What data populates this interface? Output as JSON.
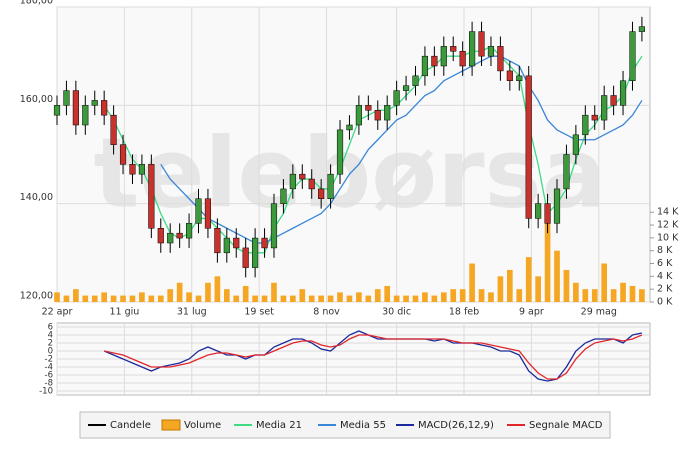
{
  "chart_data": [
    {
      "type": "candlestick",
      "name": "Candele",
      "color": "#000000",
      "up_color": "#3c9a3c",
      "down_color": "#c8322d",
      "watermark": "telebørsa",
      "x": [
        0,
        7,
        14,
        21,
        28,
        35,
        42,
        49,
        56,
        63,
        70,
        77,
        84,
        91,
        98,
        105,
        112,
        119,
        126,
        133,
        140,
        147,
        154,
        161,
        168,
        175,
        182,
        189,
        196,
        203,
        210,
        217,
        224,
        231,
        238,
        245,
        252,
        259,
        266,
        273,
        280,
        287,
        294,
        301,
        308,
        315,
        322,
        329,
        336,
        343,
        350,
        357,
        364,
        371,
        378,
        385,
        392,
        399,
        406,
        413,
        420,
        427,
        434
      ],
      "open": [
        158,
        160,
        163,
        156,
        160,
        161,
        158,
        152,
        148,
        146,
        148,
        135,
        132,
        134,
        133,
        136,
        141,
        135,
        130,
        133,
        131,
        127,
        133,
        131,
        140,
        143,
        146,
        145,
        143,
        141,
        146,
        155,
        156,
        160,
        159,
        157,
        160,
        163,
        164,
        166,
        170,
        168,
        172,
        171,
        168,
        175,
        170,
        172,
        167,
        165,
        166,
        137,
        140,
        136,
        143,
        150,
        154,
        158,
        157,
        162,
        160,
        165,
        175
      ],
      "high": [
        162,
        165,
        165,
        162,
        163,
        163,
        160,
        154,
        150,
        150,
        150,
        137,
        136,
        136,
        138,
        143,
        143,
        137,
        135,
        135,
        133,
        135,
        135,
        142,
        145,
        148,
        148,
        147,
        145,
        148,
        157,
        158,
        162,
        162,
        161,
        162,
        165,
        166,
        168,
        172,
        172,
        174,
        174,
        173,
        177,
        177,
        174,
        174,
        169,
        168,
        168,
        142,
        142,
        145,
        152,
        156,
        160,
        160,
        164,
        164,
        167,
        177,
        178
      ],
      "low": [
        156,
        158,
        154,
        154,
        158,
        156,
        150,
        146,
        144,
        144,
        133,
        130,
        130,
        131,
        131,
        134,
        133,
        128,
        128,
        129,
        125,
        125,
        129,
        129,
        138,
        141,
        143,
        141,
        139,
        139,
        144,
        153,
        154,
        157,
        155,
        155,
        158,
        161,
        162,
        164,
        166,
        166,
        169,
        166,
        166,
        168,
        168,
        165,
        163,
        163,
        135,
        135,
        134,
        134,
        141,
        148,
        152,
        155,
        155,
        158,
        158,
        163,
        173
      ],
      "close": [
        160,
        163,
        156,
        160,
        161,
        158,
        152,
        148,
        146,
        148,
        135,
        132,
        134,
        133,
        136,
        141,
        135,
        130,
        133,
        131,
        127,
        133,
        131,
        140,
        143,
        146,
        145,
        143,
        141,
        146,
        155,
        156,
        160,
        159,
        157,
        160,
        163,
        164,
        166,
        170,
        168,
        172,
        171,
        168,
        175,
        170,
        172,
        167,
        165,
        166,
        137,
        140,
        136,
        143,
        150,
        154,
        158,
        157,
        162,
        160,
        165,
        175,
        176
      ],
      "series": [
        {
          "name": "Media 21",
          "color": "#3ddc84",
          "values": [
            null,
            null,
            null,
            null,
            null,
            160,
            157,
            153,
            149,
            147,
            143,
            138,
            134,
            133,
            134,
            137,
            137,
            135,
            133,
            131,
            130,
            130,
            130,
            135,
            138,
            143,
            145,
            145,
            143,
            143,
            147,
            152,
            157,
            158,
            159,
            159,
            160,
            162,
            164,
            167,
            168,
            170,
            170,
            170,
            171,
            171,
            172,
            170,
            168,
            166,
            156,
            148,
            138,
            140,
            143,
            149,
            154,
            156,
            159,
            160,
            162,
            167,
            170
          ]
        },
        {
          "name": "Media 55",
          "color": "#3a86d8",
          "values": [
            null,
            null,
            null,
            null,
            null,
            null,
            null,
            null,
            null,
            null,
            null,
            148,
            145,
            143,
            141,
            139,
            137,
            136,
            135,
            134,
            133,
            132,
            132,
            133,
            134,
            135,
            136,
            137,
            138,
            140,
            143,
            146,
            148,
            151,
            153,
            155,
            157,
            158,
            160,
            162,
            163,
            165,
            166,
            167,
            168,
            169,
            170,
            170,
            169,
            168,
            164,
            161,
            157,
            155,
            154,
            153,
            153,
            153,
            154,
            155,
            156,
            158,
            161
          ]
        }
      ],
      "volume": {
        "name": "Volume",
        "color": "#f5a623",
        "axis": "y2",
        "values": [
          1.5,
          1,
          2,
          1,
          1,
          1.5,
          1,
          1,
          1,
          1.5,
          1,
          1,
          2,
          3,
          1.5,
          1,
          3,
          4,
          2,
          1,
          2.5,
          1,
          1,
          3,
          1,
          1,
          2,
          1,
          1,
          1,
          1.5,
          1,
          1.5,
          1,
          2,
          2.5,
          1,
          1,
          1,
          1.5,
          1,
          1.5,
          2,
          2,
          6,
          2,
          1.5,
          4,
          5,
          2,
          7,
          4,
          13,
          8,
          5,
          3,
          2,
          2,
          6,
          2,
          3,
          2.5,
          2
        ]
      },
      "xlim": [
        0,
        440
      ],
      "xticks": [
        {
          "value": 0,
          "label": "22 apr"
        },
        {
          "value": 50,
          "label": "11 giu"
        },
        {
          "value": 100,
          "label": "31 lug"
        },
        {
          "value": 150,
          "label": "19 set"
        },
        {
          "value": 200,
          "label": "8 nov"
        },
        {
          "value": 252,
          "label": "30 dic"
        },
        {
          "value": 302,
          "label": "18 feb"
        },
        {
          "value": 352,
          "label": "9 apr"
        },
        {
          "value": 402,
          "label": "29 mag"
        }
      ],
      "ylim": [
        120,
        180
      ],
      "yticks": [
        {
          "value": 120,
          "label": "120,00"
        },
        {
          "value": 140,
          "label": "140,00"
        },
        {
          "value": 160,
          "label": "160,00"
        },
        {
          "value": 180,
          "label": "180,00"
        }
      ],
      "y2lim": [
        0,
        46
      ],
      "y2ticks": [
        {
          "value": 0,
          "label": "0 K"
        },
        {
          "value": 2,
          "label": "2 K"
        },
        {
          "value": 4,
          "label": "4 K"
        },
        {
          "value": 6,
          "label": "6 K"
        },
        {
          "value": 8,
          "label": "8 K"
        },
        {
          "value": 10,
          "label": "10 K"
        },
        {
          "value": 12,
          "label": "12 K"
        },
        {
          "value": 14,
          "label": "14 K"
        }
      ],
      "grid": true
    },
    {
      "type": "line",
      "x": [
        0,
        7,
        14,
        21,
        28,
        35,
        42,
        49,
        56,
        63,
        70,
        77,
        84,
        91,
        98,
        105,
        112,
        119,
        126,
        133,
        140,
        147,
        154,
        161,
        168,
        175,
        182,
        189,
        196,
        203,
        210,
        217,
        224,
        231,
        238,
        245,
        252,
        259,
        266,
        273,
        280,
        287,
        294,
        301,
        308,
        315,
        322,
        329,
        336,
        343,
        350,
        357,
        364,
        371,
        378,
        385,
        392,
        399,
        406,
        413,
        420,
        427,
        434
      ],
      "series": [
        {
          "name": "MACD(26,12,9)",
          "color": "#1a2a9c",
          "values": [
            null,
            null,
            null,
            null,
            null,
            0,
            -1,
            -2,
            -3,
            -4,
            -5,
            -4,
            -3.5,
            -3,
            -2,
            0,
            1,
            0,
            -1,
            -1,
            -2,
            -1,
            -1,
            1,
            2,
            3,
            3,
            2,
            0.5,
            0,
            2,
            4,
            5,
            4,
            3,
            3,
            3,
            3,
            3,
            3,
            2.5,
            3,
            2,
            2,
            2,
            1.5,
            1,
            0,
            0,
            -1,
            -5,
            -7,
            -7.5,
            -7,
            -4,
            0,
            2,
            3,
            3,
            3,
            2,
            4,
            4.5
          ]
        },
        {
          "name": "Segnale MACD",
          "color": "#e0262b",
          "values": [
            null,
            null,
            null,
            null,
            null,
            0,
            -0.5,
            -1,
            -2,
            -3,
            -4,
            -4,
            -4,
            -3.5,
            -3,
            -2,
            -1,
            -0.5,
            -0.5,
            -1,
            -1.5,
            -1,
            -1,
            0,
            1,
            2,
            2.5,
            2.5,
            1.5,
            1,
            1.5,
            3,
            4,
            4,
            3.5,
            3,
            3,
            3,
            3,
            3,
            3,
            3,
            2.5,
            2,
            2,
            2,
            1.5,
            1,
            0.5,
            0,
            -3,
            -5.5,
            -7,
            -7,
            -5.5,
            -2,
            0.5,
            2,
            2.5,
            3,
            2.5,
            3,
            4
          ]
        }
      ],
      "xlim": [
        0,
        440
      ],
      "ylim": [
        -11,
        7
      ],
      "yticks": [
        6,
        4,
        2,
        0,
        -2,
        -4,
        -6,
        -8,
        -10
      ],
      "grid": true
    }
  ]
}
